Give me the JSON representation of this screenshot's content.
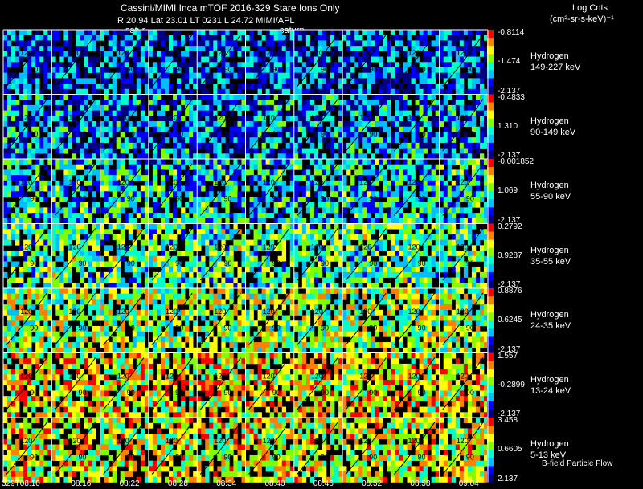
{
  "header": {
    "title": "Cassini/MIMI Inca mTOF  2016-329    Stare    Ions Only",
    "orbit_line": "R          20.94  Lat 23.01  LT 0231  L           24.72   MIMI/APL",
    "saturn_label_1": "satur",
    "saturn_label_2": "saturn",
    "units_title": "Log Cnts",
    "units": "(cm²-sr-s-keV)⁻¹"
  },
  "footer": {
    "flow_label": "B-field Particle Flow",
    "time_ticks": [
      "329T08:10",
      "08:16",
      "08:22",
      "08:28",
      "08:34",
      "08:40",
      "08:46",
      "08:52",
      "08:58",
      "09:04"
    ]
  },
  "chart_data": {
    "type": "heatmap",
    "title": "Cassini/MIMI Inca mTOF  2016-329    Stare    Ions Only",
    "xlabel": "",
    "ylabel": "",
    "columns": 10,
    "colormap": [
      "#000080",
      "#0000ff",
      "#00bfff",
      "#00ffcc",
      "#7fff00",
      "#ffff00",
      "#ff8000",
      "#ff0000"
    ],
    "bands": [
      {
        "species": "Hydrogen",
        "energy": "149-227 keV",
        "cb_max": "-0.8114",
        "cb_mid": "-1.474",
        "cb_min": "-2.137",
        "bias": 0.22
      },
      {
        "species": "Hydrogen",
        "energy": "90-149 keV",
        "cb_max": "-0.4833",
        "cb_mid": "1.310",
        "cb_min": "-2.137",
        "bias": 0.28
      },
      {
        "species": "Hydrogen",
        "energy": "55-90 keV",
        "cb_max": "-0.001852",
        "cb_mid": "1.069",
        "cb_min": "-2.137",
        "bias": 0.38
      },
      {
        "species": "Hydrogen",
        "energy": "35-55 keV",
        "cb_max": "0.2792",
        "cb_mid": "0.9287",
        "cb_min": "-2.137",
        "bias": 0.48
      },
      {
        "species": "Hydrogen",
        "energy": "24-35 keV",
        "cb_max": "0.8876",
        "cb_mid": "0.6245",
        "cb_min": "-2.137",
        "bias": 0.58
      },
      {
        "species": "Hydrogen",
        "energy": "13-24 keV",
        "cb_max": "1.557",
        "cb_mid": "-0.2899",
        "cb_min": "-2.137",
        "bias": 0.7
      },
      {
        "species": "Hydrogen",
        "energy": "5-13 keV",
        "cb_max": "3.458",
        "cb_mid": "0.6605",
        "cb_min": "2.137",
        "bias": 0.66
      }
    ],
    "contour_labels": [
      "120",
      "90",
      "150",
      "30"
    ]
  }
}
